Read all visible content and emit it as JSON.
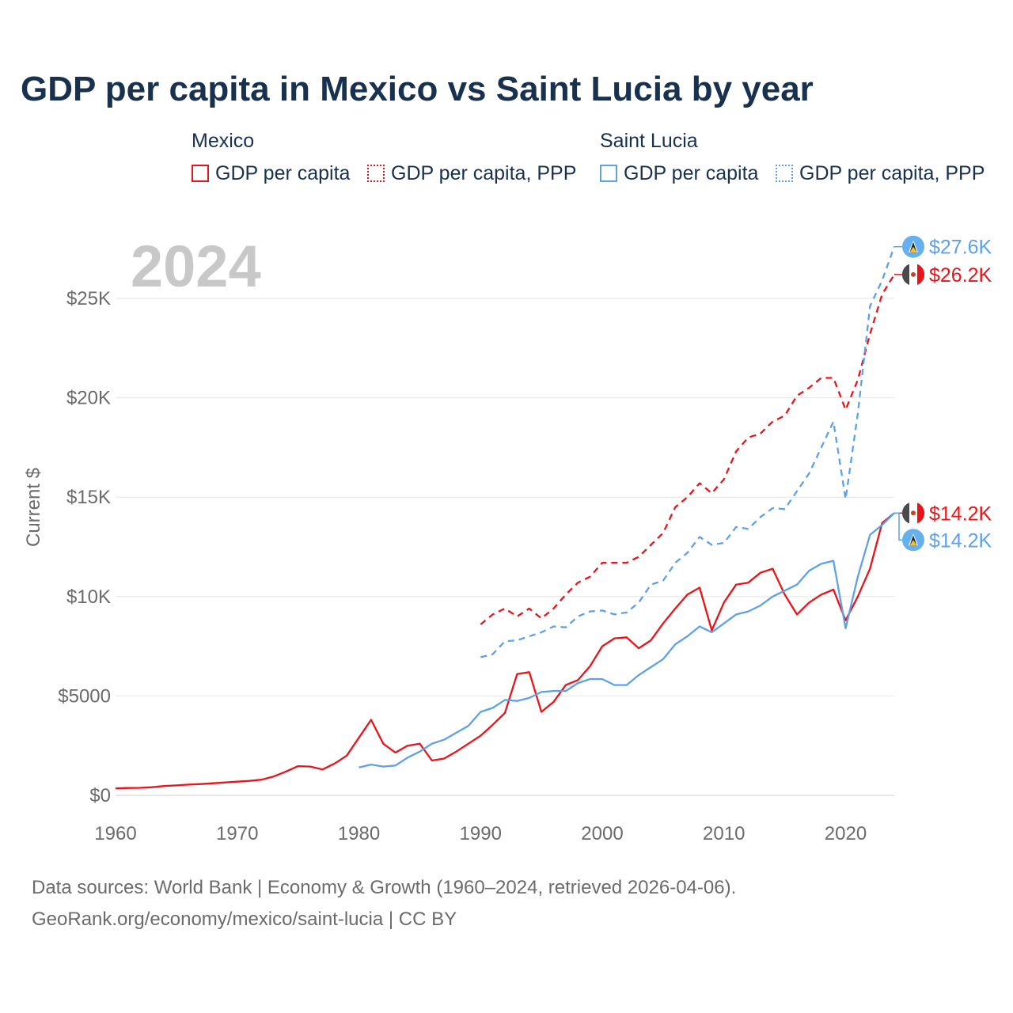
{
  "title": "GDP per capita in Mexico vs Saint Lucia by year",
  "colors": {
    "mexico": "#e8141a",
    "saint_lucia": "#5ea1e8",
    "title": "#17314f",
    "axis_text": "#6b6b6b",
    "grid": "#e6e6e6",
    "year_watermark": "#c8c8c8"
  },
  "legend": {
    "groups": [
      {
        "title": "Mexico",
        "items": [
          {
            "label": "GDP per capita",
            "style": "solid"
          },
          {
            "label": "GDP per capita, PPP",
            "style": "dashed"
          }
        ]
      },
      {
        "title": "Saint Lucia",
        "items": [
          {
            "label": "GDP per capita",
            "style": "solid"
          },
          {
            "label": "GDP per capita, PPP",
            "style": "dashed"
          }
        ]
      }
    ]
  },
  "footer": {
    "line1": "Data sources: World Bank | Economy & Growth (1960–2024, retrieved 2026-04-06).",
    "line2": "GeoRank.org/economy/mexico/saint-lucia | CC BY"
  },
  "chart_data": {
    "type": "line",
    "year_label": "2024",
    "ylabel": "Current $",
    "xlim": [
      1960,
      2024
    ],
    "ylim": [
      0,
      27600
    ],
    "x_ticks": [
      1960,
      1970,
      1980,
      1990,
      2000,
      2010,
      2020
    ],
    "x_tick_labels": [
      "1960",
      "1970",
      "1980",
      "1990",
      "2000",
      "2010",
      "2020"
    ],
    "y_ticks": [
      0,
      5000,
      10000,
      15000,
      20000,
      25000
    ],
    "y_tick_labels": [
      "$0",
      "$5000",
      "$10K",
      "$15K",
      "$20K",
      "$25K"
    ],
    "grid": true,
    "series": [
      {
        "name": "Mexico GDP per capita",
        "country": "mexico",
        "style": "solid",
        "end_label": "$14.2K",
        "x": [
          1960,
          1961,
          1962,
          1963,
          1964,
          1965,
          1966,
          1967,
          1968,
          1969,
          1970,
          1971,
          1972,
          1973,
          1974,
          1975,
          1976,
          1977,
          1978,
          1979,
          1980,
          1981,
          1982,
          1983,
          1984,
          1985,
          1986,
          1987,
          1988,
          1989,
          1990,
          1991,
          1992,
          1993,
          1994,
          1995,
          1996,
          1997,
          1998,
          1999,
          2000,
          2001,
          2002,
          2003,
          2004,
          2005,
          2006,
          2007,
          2008,
          2009,
          2010,
          2011,
          2012,
          2013,
          2014,
          2015,
          2016,
          2017,
          2018,
          2019,
          2020,
          2021,
          2022,
          2023,
          2024
        ],
        "values": [
          350,
          370,
          380,
          410,
          470,
          500,
          540,
          570,
          610,
          650,
          690,
          730,
          790,
          950,
          1200,
          1470,
          1450,
          1300,
          1600,
          2000,
          2900,
          3800,
          2600,
          2150,
          2500,
          2600,
          1750,
          1850,
          2200,
          2600,
          3000,
          3550,
          4150,
          6100,
          6200,
          4200,
          4700,
          5550,
          5800,
          6500,
          7500,
          7900,
          7950,
          7400,
          7800,
          8650,
          9400,
          10100,
          10450,
          8300,
          9700,
          10600,
          10700,
          11200,
          11400,
          10100,
          9100,
          9700,
          10100,
          10350,
          8800,
          10000,
          11400,
          13700,
          14200
        ]
      },
      {
        "name": "Mexico GDP per capita, PPP",
        "country": "mexico",
        "style": "dashed",
        "end_label": "$26.2K",
        "x": [
          1990,
          1991,
          1992,
          1993,
          1994,
          1995,
          1996,
          1997,
          1998,
          1999,
          2000,
          2001,
          2002,
          2003,
          2004,
          2005,
          2006,
          2007,
          2008,
          2009,
          2010,
          2011,
          2012,
          2013,
          2014,
          2015,
          2016,
          2017,
          2018,
          2019,
          2020,
          2021,
          2022,
          2023,
          2024
        ],
        "values": [
          8600,
          9100,
          9400,
          9000,
          9400,
          8900,
          9400,
          10100,
          10700,
          11000,
          11700,
          11700,
          11700,
          12000,
          12600,
          13200,
          14500,
          15000,
          15700,
          15200,
          15900,
          17300,
          18000,
          18200,
          18800,
          19100,
          20100,
          20500,
          21000,
          21000,
          19400,
          20900,
          23200,
          25200,
          26200
        ]
      },
      {
        "name": "Saint Lucia GDP per capita",
        "country": "saint_lucia",
        "style": "solid",
        "end_label": "$14.2K",
        "x": [
          1980,
          1981,
          1982,
          1983,
          1984,
          1985,
          1986,
          1987,
          1988,
          1989,
          1990,
          1991,
          1992,
          1993,
          1994,
          1995,
          1996,
          1997,
          1998,
          1999,
          2000,
          2001,
          2002,
          2003,
          2004,
          2005,
          2006,
          2007,
          2008,
          2009,
          2010,
          2011,
          2012,
          2013,
          2014,
          2015,
          2016,
          2017,
          2018,
          2019,
          2020,
          2021,
          2022,
          2023,
          2024
        ],
        "values": [
          1400,
          1550,
          1450,
          1500,
          1900,
          2200,
          2600,
          2800,
          3150,
          3500,
          4200,
          4400,
          4800,
          4750,
          4900,
          5200,
          5250,
          5250,
          5650,
          5850,
          5850,
          5550,
          5550,
          6050,
          6450,
          6850,
          7600,
          8000,
          8500,
          8200,
          8650,
          9100,
          9250,
          9550,
          10000,
          10300,
          10600,
          11300,
          11650,
          11800,
          8400,
          11000,
          13100,
          13600,
          14200
        ]
      },
      {
        "name": "Saint Lucia GDP per capita, PPP",
        "country": "saint_lucia",
        "style": "dashed",
        "end_label": "$27.6K",
        "x": [
          1990,
          1991,
          1992,
          1993,
          1994,
          1995,
          1996,
          1997,
          1998,
          1999,
          2000,
          2001,
          2002,
          2003,
          2004,
          2005,
          2006,
          2007,
          2008,
          2009,
          2010,
          2011,
          2012,
          2013,
          2014,
          2015,
          2016,
          2017,
          2018,
          2019,
          2020,
          2021,
          2022,
          2023,
          2024
        ],
        "values": [
          6950,
          7100,
          7750,
          7800,
          8000,
          8200,
          8500,
          8450,
          9000,
          9250,
          9300,
          9100,
          9200,
          9700,
          10600,
          10800,
          11700,
          12200,
          13000,
          12600,
          12700,
          13500,
          13400,
          14000,
          14450,
          14400,
          15300,
          16200,
          17500,
          18800,
          14900,
          19200,
          24600,
          25900,
          27600
        ]
      }
    ]
  }
}
